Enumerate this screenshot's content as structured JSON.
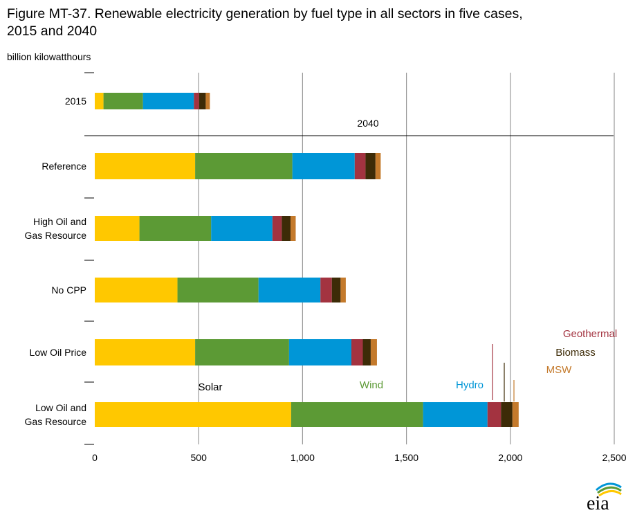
{
  "title_line1": "Figure MT-37. Renewable electricity generation by fuel type in all sectors in five cases,",
  "title_line2": "2015 and 2040",
  "unit_label": "billion kilowatthours",
  "logo_text": "eia",
  "chart_data": {
    "type": "bar",
    "orientation": "horizontal",
    "stacked": true,
    "title": "Figure MT-37. Renewable electricity generation by fuel type in all sectors in five cases, 2015 and 2040",
    "ylabel": "billion kilowatthours",
    "xlim": [
      0,
      2500
    ],
    "x_ticks": [
      0,
      500,
      1000,
      1500,
      2000,
      2500
    ],
    "x_tick_labels": [
      "0",
      "500",
      "1,000",
      "1,500",
      "2,000",
      "2,500"
    ],
    "grid": true,
    "section_label": "2040",
    "categories": [
      [
        "2015"
      ],
      [
        "Reference"
      ],
      [
        "High Oil and",
        "Gas Resource"
      ],
      [
        "No CPP"
      ],
      [
        "Low Oil Price"
      ],
      [
        "Low Oil and",
        "Gas Resource"
      ]
    ],
    "series": [
      {
        "name": "Solar",
        "color": "#FFC800",
        "values": [
          42,
          483,
          215,
          398,
          483,
          945
        ]
      },
      {
        "name": "Wind",
        "color": "#5C9A35",
        "values": [
          190,
          468,
          345,
          390,
          452,
          635
        ]
      },
      {
        "name": "Hydro",
        "color": "#0096D7",
        "values": [
          245,
          300,
          295,
          298,
          300,
          310
        ]
      },
      {
        "name": "Geothermal",
        "color": "#A33340",
        "values": [
          25,
          52,
          45,
          55,
          55,
          65
        ]
      },
      {
        "name": "Biomass",
        "color": "#3D2B07",
        "values": [
          32,
          48,
          42,
          42,
          38,
          55
        ]
      },
      {
        "name": "MSW",
        "color": "#C47A2C",
        "values": [
          20,
          25,
          25,
          25,
          30,
          30
        ]
      }
    ],
    "annotations": [
      "Solar",
      "Wind",
      "Hydro",
      "Geothermal",
      "Biomass",
      "MSW"
    ]
  }
}
